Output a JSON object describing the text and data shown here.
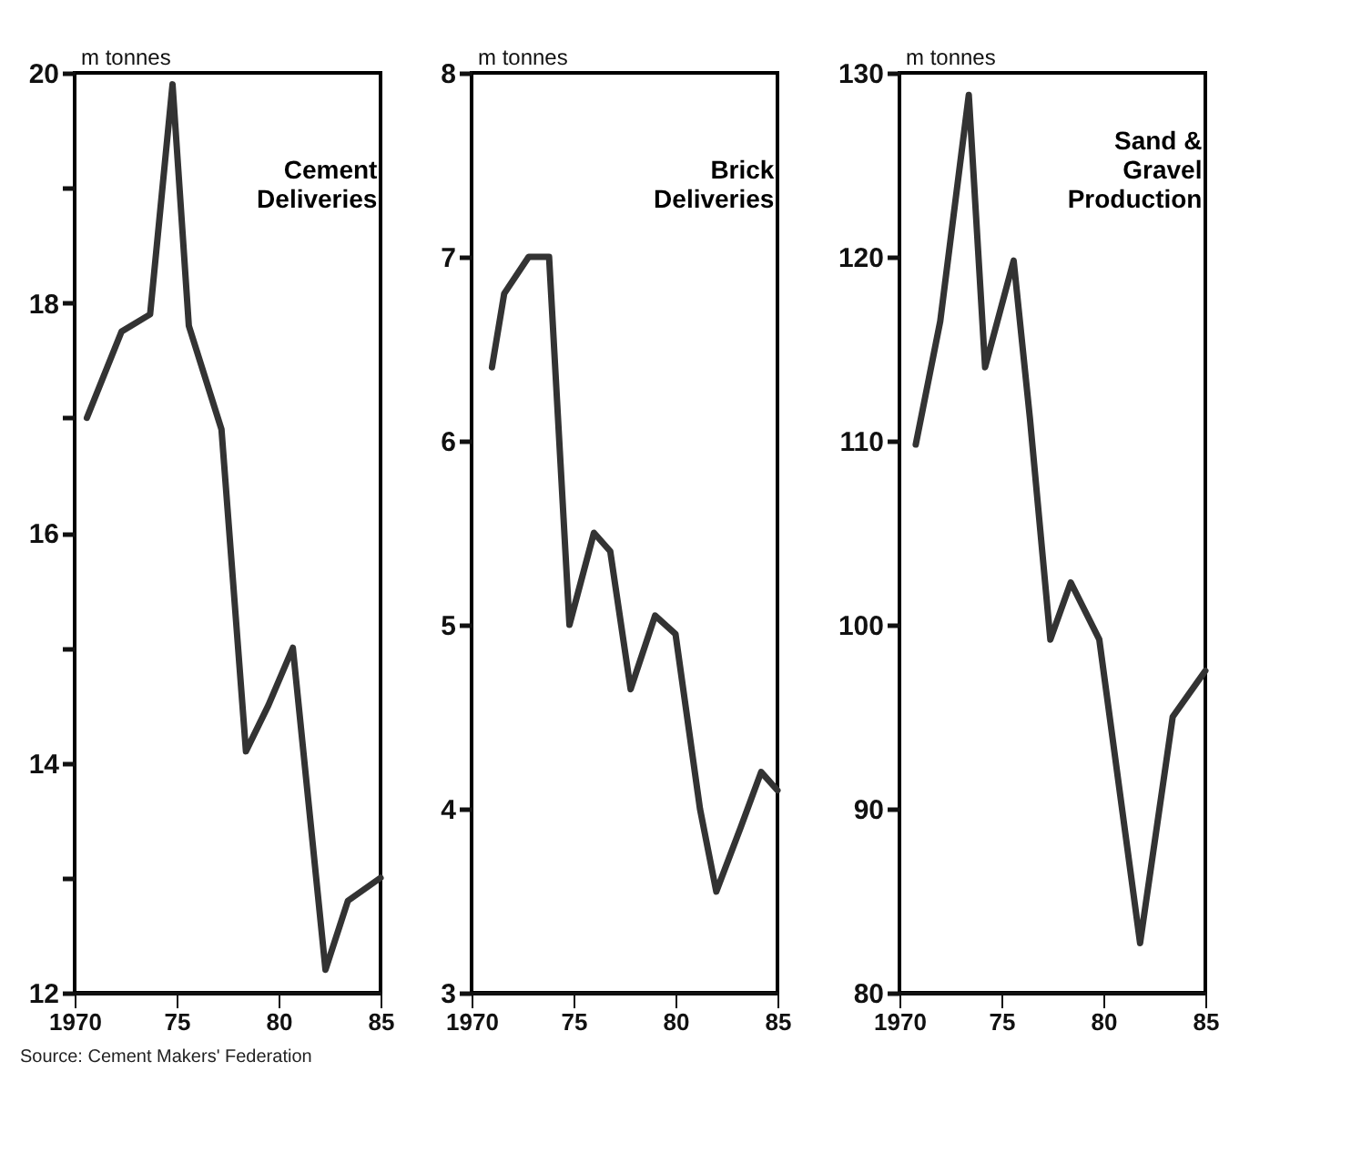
{
  "chart_data": [
    {
      "type": "line",
      "title": "Cement Deliveries",
      "ylabel": "m tonnes",
      "color": "#333333",
      "x": [
        1970.6,
        1972.3,
        1973.7,
        1974.8,
        1975.6,
        1977.2,
        1978.4,
        1979.5,
        1980.7,
        1982.3,
        1983.4,
        1985
      ],
      "values": [
        17.0,
        17.75,
        17.9,
        19.9,
        17.8,
        16.9,
        14.1,
        14.5,
        15.0,
        12.2,
        12.8,
        13.0
      ],
      "xlim": [
        1970,
        1985
      ],
      "xticks": [
        {
          "value": 1970,
          "label": "1970"
        },
        {
          "value": 1975,
          "label": "75"
        },
        {
          "value": 1980,
          "label": "80"
        },
        {
          "value": 1985,
          "label": "85"
        }
      ],
      "ylim": [
        12,
        20
      ],
      "yticks": [
        12,
        {
          "value": 13,
          "label": null
        },
        14,
        {
          "value": 15,
          "label": null
        },
        16,
        {
          "value": 17,
          "label": null
        },
        18,
        {
          "value": 19,
          "label": null
        },
        20
      ],
      "annotations": [
        "Source: Cement Makers' Federation"
      ]
    },
    {
      "type": "line",
      "title": "Brick Deliveries",
      "ylabel": "m tonnes",
      "color": "#333333",
      "x": [
        1971.0,
        1971.6,
        1972.8,
        1973.8,
        1974.8,
        1976.0,
        1976.8,
        1977.8,
        1979.0,
        1980.0,
        1981.2,
        1982.0,
        1983.2,
        1984.2,
        1985
      ],
      "values": [
        6.4,
        6.8,
        7.0,
        7.0,
        5.0,
        5.5,
        5.4,
        4.65,
        5.05,
        4.95,
        4.0,
        3.55,
        3.9,
        4.2,
        4.1
      ],
      "xlim": [
        1970,
        1985
      ],
      "xticks": [
        {
          "value": 1970,
          "label": "1970"
        },
        {
          "value": 1975,
          "label": "75"
        },
        {
          "value": 1980,
          "label": "80"
        },
        {
          "value": 1985,
          "label": "85"
        }
      ],
      "ylim": [
        3,
        8
      ],
      "yticks": [
        3,
        4,
        5,
        6,
        7,
        8
      ]
    },
    {
      "type": "line",
      "title": "Sand & Gravel Production",
      "ylabel": "m tonnes",
      "color": "#333333",
      "x": [
        1970.8,
        1972.0,
        1973.4,
        1974.2,
        1975.6,
        1976.4,
        1977.4,
        1978.4,
        1979.8,
        1981.8,
        1983.4,
        1985
      ],
      "values": [
        109.8,
        116.5,
        128.8,
        114.0,
        119.8,
        111.2,
        99.2,
        102.3,
        99.2,
        82.7,
        95.0,
        97.5
      ],
      "xlim": [
        1970,
        1985
      ],
      "xticks": [
        {
          "value": 1970,
          "label": "1970"
        },
        {
          "value": 1975,
          "label": "75"
        },
        {
          "value": 1980,
          "label": "80"
        },
        {
          "value": 1985,
          "label": "85"
        }
      ],
      "ylim": [
        80,
        130
      ],
      "yticks": [
        80,
        90,
        100,
        110,
        120,
        130
      ]
    }
  ]
}
